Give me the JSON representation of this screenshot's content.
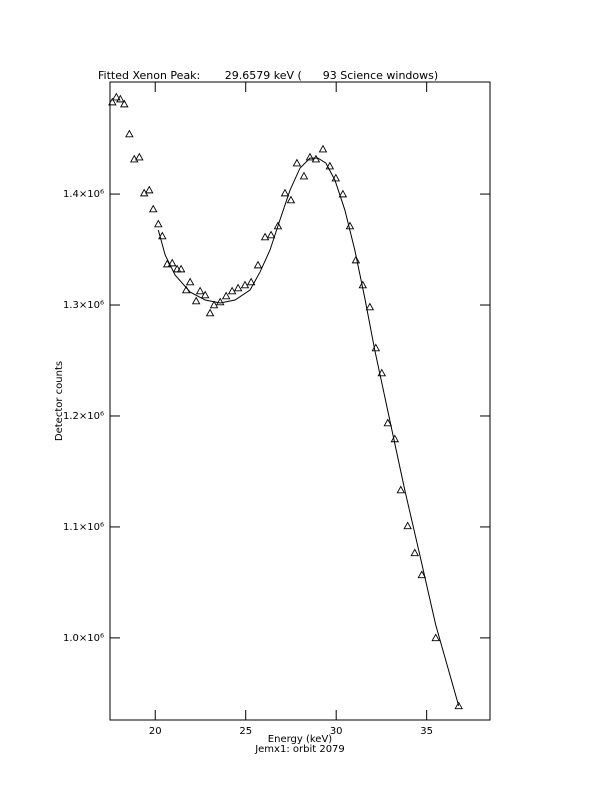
{
  "chart_data": {
    "type": "scatter",
    "title": "Fitted Xenon Peak:       29.6579 keV (      93 Science windows)",
    "x_label": "Energy (keV)",
    "subtitle": "Jemx1: orbit 2079",
    "y_label": "Detector counts",
    "xlim": [
      17.5,
      38.5
    ],
    "ylim": [
      926000,
      1501000
    ],
    "xticks": [
      20,
      25,
      30,
      35
    ],
    "yticks": [
      {
        "value": 1000000,
        "label": "1.0×10⁶"
      },
      {
        "value": 1100000,
        "label": "1.1×10⁶"
      },
      {
        "value": 1200000,
        "label": "1.2×10⁶"
      },
      {
        "value": 1300000,
        "label": "1.3×10⁶"
      },
      {
        "value": 1400000,
        "label": "1.4×10⁶"
      }
    ],
    "color": "#000000",
    "series": [
      {
        "style": "triangle",
        "x": [
          17.63,
          17.85,
          18.07,
          18.29,
          18.57,
          18.84,
          19.12,
          19.39,
          19.67,
          19.89,
          20.17,
          20.39,
          20.66,
          20.94,
          21.21,
          21.43,
          21.71,
          21.93,
          22.26,
          22.48,
          22.76,
          23.03,
          23.25,
          23.59,
          23.92,
          24.25,
          24.58,
          24.96,
          25.3,
          25.68,
          26.07,
          26.4,
          26.78,
          27.17,
          27.5,
          27.83,
          28.22,
          28.55,
          28.88,
          29.27,
          29.65,
          29.98,
          30.37,
          30.76,
          31.09,
          31.47,
          31.86,
          32.19,
          32.52,
          32.85,
          33.24,
          33.57,
          33.95,
          34.34,
          34.73,
          35.5,
          36.77
        ],
        "values": [
          1482900,
          1487400,
          1485600,
          1481100,
          1454100,
          1431500,
          1433300,
          1400900,
          1403600,
          1386500,
          1373000,
          1362200,
          1336900,
          1337800,
          1332400,
          1332400,
          1313500,
          1320700,
          1303600,
          1312600,
          1309000,
          1292800,
          1300000,
          1302700,
          1308100,
          1312600,
          1315300,
          1318000,
          1320700,
          1336000,
          1361300,
          1363100,
          1371200,
          1400900,
          1394600,
          1427900,
          1416200,
          1433300,
          1431500,
          1440500,
          1425200,
          1414400,
          1400000,
          1371200,
          1340500,
          1318000,
          1298200,
          1261300,
          1238700,
          1193700,
          1179300,
          1133300,
          1100900,
          1076600,
          1056800,
          1000000,
          938700
        ]
      },
      {
        "style": "line",
        "x": [
          20.17,
          20.55,
          21.1,
          21.93,
          22.76,
          23.59,
          24.41,
          25.24,
          25.79,
          26.34,
          26.89,
          27.45,
          28.0,
          28.55,
          28.99,
          29.43,
          29.93,
          30.48,
          31.03,
          31.58,
          32.13,
          32.96,
          33.79,
          34.62,
          35.5,
          36.77
        ],
        "values": [
          1367600,
          1345000,
          1327000,
          1311700,
          1304500,
          1301800,
          1304500,
          1313500,
          1329700,
          1349500,
          1376600,
          1403600,
          1423400,
          1432400,
          1432400,
          1427900,
          1412600,
          1385600,
          1349500,
          1306300,
          1259500,
          1196400,
          1133300,
          1074800,
          1011700,
          938700
        ]
      }
    ]
  }
}
